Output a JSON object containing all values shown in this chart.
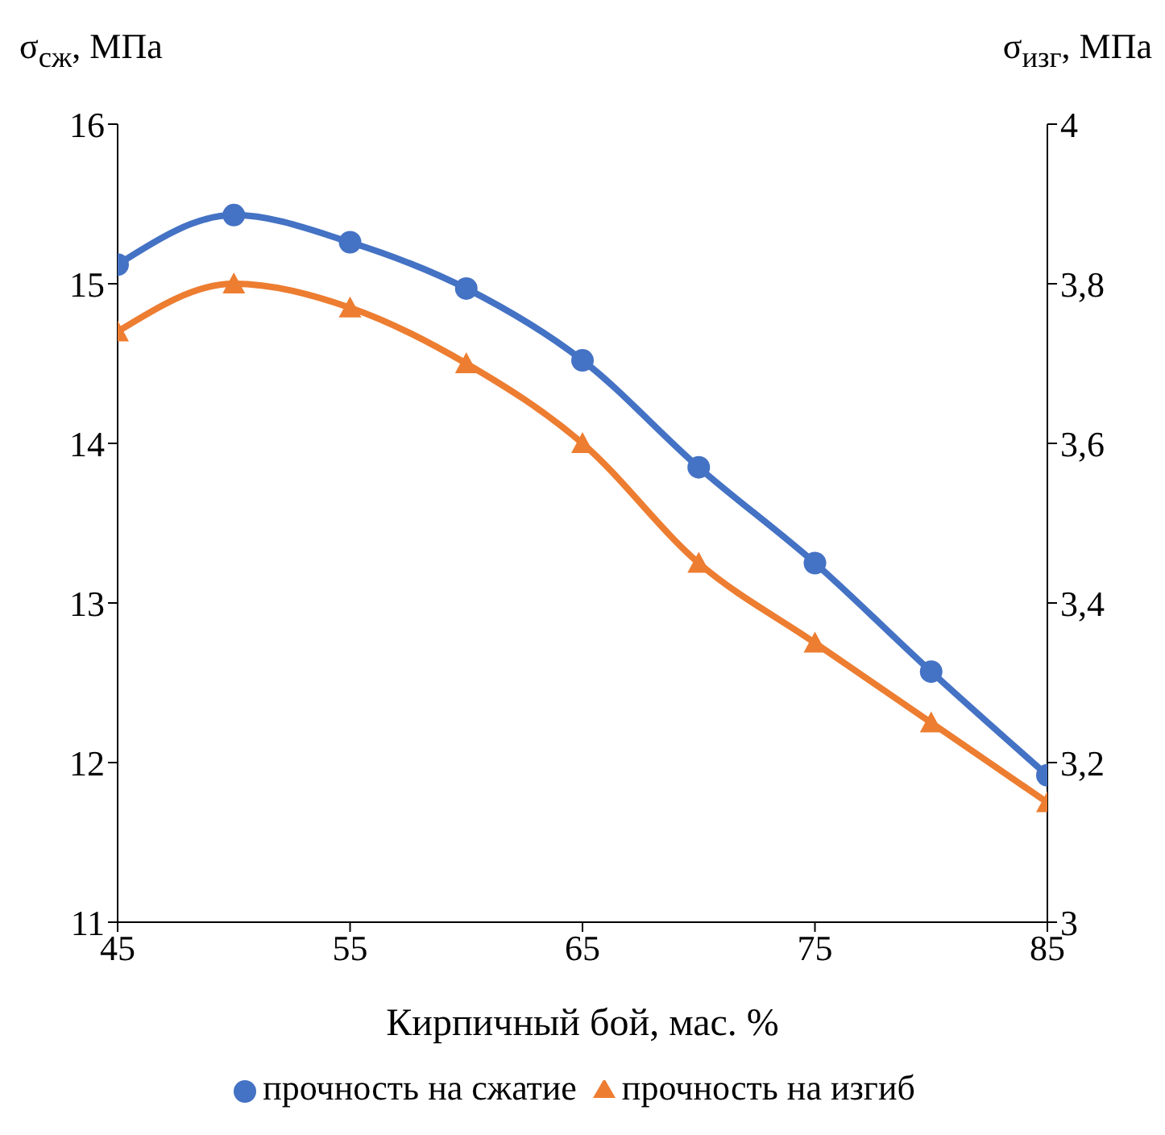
{
  "chart_data": {
    "type": "line",
    "xlabel": "Кирпичный бой, мас. %",
    "ylabel": "σ$_{сж}$, МПа",
    "y2label": "σ$_{изг}$, МПа",
    "x": [
      45,
      50,
      55,
      60,
      65,
      70,
      75,
      80,
      85
    ],
    "xlim": [
      45,
      85
    ],
    "xticks": [
      45,
      55,
      65,
      75,
      85
    ],
    "ylim": [
      11,
      16
    ],
    "yticks": [
      11,
      12,
      13,
      14,
      15,
      16
    ],
    "y2lim": [
      3,
      4
    ],
    "y2ticks": [
      3,
      {
        "value": 3.2,
        "label": "3,2"
      },
      {
        "value": 3.4,
        "label": "3,4"
      },
      {
        "value": 3.6,
        "label": "3,6"
      },
      {
        "value": 3.8,
        "label": "3,8"
      },
      4
    ],
    "series": [
      {
        "name": "прочность на сжатие",
        "color": "#4472c4",
        "marker": "circle",
        "values": [
          15.12,
          15.43,
          15.26,
          14.97,
          14.52,
          13.85,
          13.25,
          12.57,
          11.92
        ]
      },
      {
        "name": "прочность на изгиб",
        "color": "#ed7d31",
        "marker": "triangle",
        "axis": "y2",
        "values": [
          3.74,
          3.8,
          3.77,
          3.7,
          3.6,
          3.45,
          3.35,
          3.25,
          3.15
        ]
      }
    ],
    "legend": "bottom"
  }
}
